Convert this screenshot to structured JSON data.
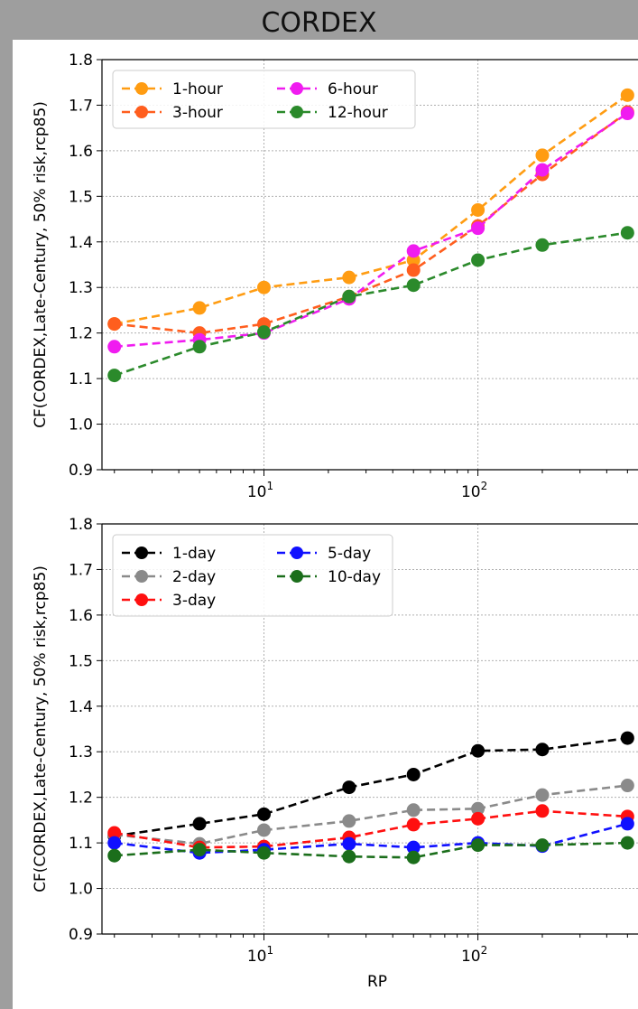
{
  "page": {
    "title": "CORDEX"
  },
  "chart_data": [
    {
      "type": "line",
      "title": "",
      "xlabel": "",
      "ylabel": "CF(CORDEX,Late-Century, 50% risk,rcp85)",
      "xscale": "log",
      "ylim": [
        0.9,
        1.8
      ],
      "yticks": [
        "0.9",
        "1.0",
        "1.1",
        "1.2",
        "1.3",
        "1.4",
        "1.5",
        "1.6",
        "1.7",
        "1.8"
      ],
      "xticks": [
        {
          "value": 10,
          "base": "10",
          "exp": "1"
        },
        {
          "value": 100,
          "base": "10",
          "exp": "2"
        }
      ],
      "grid": true,
      "legend_position": "top-left",
      "x": [
        2,
        5,
        10,
        25,
        50,
        100,
        200,
        500
      ],
      "series": [
        {
          "name": "1-hour",
          "color": "#ff9c12",
          "values": [
            1.22,
            1.255,
            1.3,
            1.322,
            1.36,
            1.47,
            1.59,
            1.722
          ]
        },
        {
          "name": "3-hour",
          "color": "#ff5e1e",
          "values": [
            1.22,
            1.2,
            1.22,
            1.28,
            1.338,
            1.435,
            1.548,
            1.685
          ]
        },
        {
          "name": "6-hour",
          "color": "#f01cf0",
          "values": [
            1.17,
            1.185,
            1.2,
            1.275,
            1.38,
            1.43,
            1.558,
            1.682
          ]
        },
        {
          "name": "12-hour",
          "color": "#2b8a2b",
          "values": [
            1.107,
            1.17,
            1.202,
            1.28,
            1.305,
            1.36,
            1.393,
            1.42
          ]
        }
      ]
    },
    {
      "type": "line",
      "title": "",
      "xlabel": "RP",
      "ylabel": "CF(CORDEX,Late-Century, 50% risk,rcp85)",
      "xscale": "log",
      "ylim": [
        0.9,
        1.8
      ],
      "yticks": [
        "0.9",
        "1.0",
        "1.1",
        "1.2",
        "1.3",
        "1.4",
        "1.5",
        "1.6",
        "1.7",
        "1.8"
      ],
      "xticks": [
        {
          "value": 10,
          "base": "10",
          "exp": "1"
        },
        {
          "value": 100,
          "base": "10",
          "exp": "2"
        }
      ],
      "grid": true,
      "legend_position": "top-left",
      "x": [
        2,
        5,
        10,
        25,
        50,
        100,
        200,
        500
      ],
      "series": [
        {
          "name": "1-day",
          "color": "#000000",
          "values": [
            1.115,
            1.142,
            1.163,
            1.222,
            1.25,
            1.302,
            1.305,
            1.33
          ]
        },
        {
          "name": "2-day",
          "color": "#8a8a8a",
          "values": [
            1.118,
            1.098,
            1.128,
            1.148,
            1.172,
            1.175,
            1.205,
            1.226
          ]
        },
        {
          "name": "3-day",
          "color": "#ff1010",
          "values": [
            1.122,
            1.09,
            1.092,
            1.112,
            1.14,
            1.153,
            1.17,
            1.158
          ]
        },
        {
          "name": "5-day",
          "color": "#1010ff",
          "values": [
            1.1,
            1.078,
            1.085,
            1.098,
            1.09,
            1.1,
            1.093,
            1.142
          ]
        },
        {
          "name": "10-day",
          "color": "#1b6e1b",
          "values": [
            1.072,
            1.085,
            1.078,
            1.07,
            1.068,
            1.095,
            1.095,
            1.1
          ]
        }
      ]
    }
  ]
}
